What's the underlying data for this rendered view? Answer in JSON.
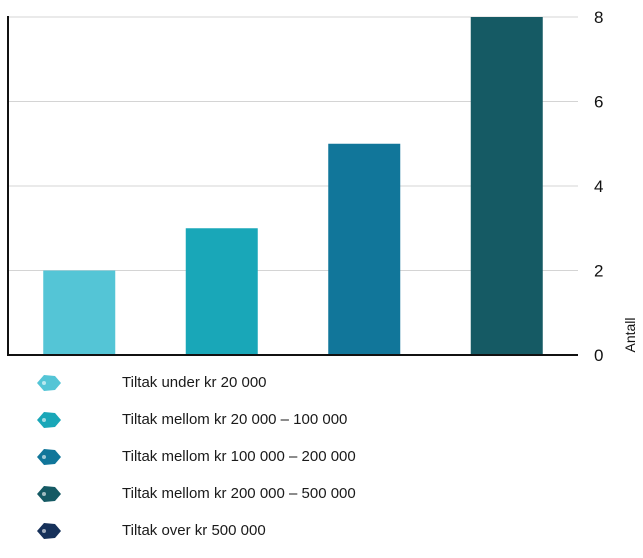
{
  "chart_data": {
    "type": "bar",
    "categories": [
      "Tiltak under kr 20 000",
      "Tiltak mellom kr 20 000 – 100 000",
      "Tiltak mellom kr 100 000 – 200 000",
      "Tiltak mellom kr 200 000 – 500 000"
    ],
    "values": [
      2,
      3,
      5,
      8
    ],
    "colors": [
      "#54c5d6",
      "#19a7b8",
      "#11769a",
      "#155a64"
    ],
    "ylabel": "Antall",
    "ylim": [
      0,
      8
    ],
    "yticks": [
      "0",
      "2",
      "4",
      "6",
      "8"
    ],
    "grid": true
  },
  "legend": [
    {
      "label": "Tiltak under kr 20 000",
      "color": "#54c5d6",
      "icon": "money-tag-icon"
    },
    {
      "label": "Tiltak mellom kr 20 000 – 100 000",
      "color": "#19a7b8",
      "icon": "money-tag-icon"
    },
    {
      "label": "Tiltak mellom kr 100 000 – 200 000",
      "color": "#11769a",
      "icon": "money-tag-icon"
    },
    {
      "label": "Tiltak mellom kr 200 000 – 500 000",
      "color": "#155a64",
      "icon": "money-tag-icon"
    },
    {
      "label": "Tiltak over kr 500 000",
      "color": "#16315a",
      "icon": "money-tag-icon"
    }
  ]
}
